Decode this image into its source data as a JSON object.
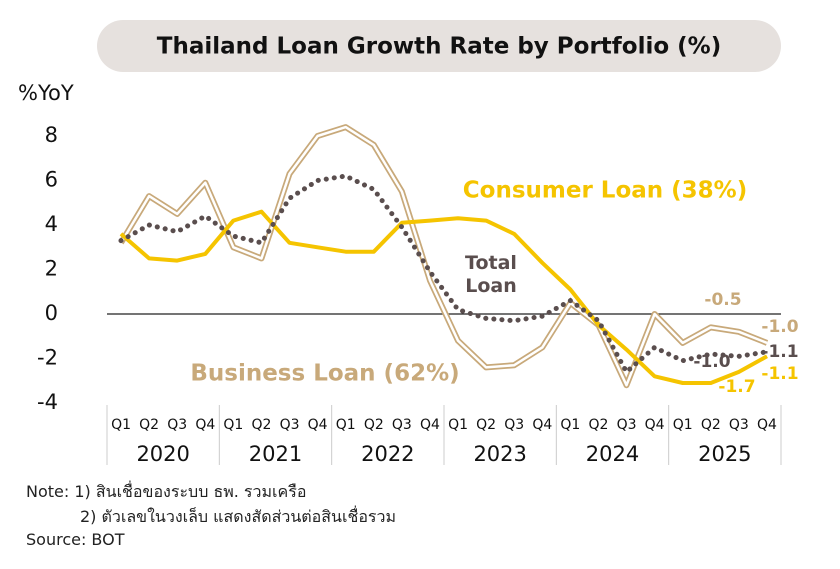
{
  "chart_data": {
    "type": "line",
    "title": "Thailand Loan Growth Rate by Portfolio (%)",
    "y_label": "%YoY",
    "categories": [
      "Q1",
      "Q2",
      "Q3",
      "Q4",
      "Q1",
      "Q2",
      "Q3",
      "Q4",
      "Q1",
      "Q2",
      "Q3",
      "Q4",
      "Q1",
      "Q2",
      "Q3",
      "Q4",
      "Q1",
      "Q2",
      "Q3",
      "Q4",
      "Q1",
      "Q2",
      "Q3",
      "Q4"
    ],
    "x_groups": [
      "2020",
      "2021",
      "2022",
      "2023",
      "2024",
      "2025"
    ],
    "ylim": [
      -4,
      8.8
    ],
    "yticks": [
      -4,
      -2,
      0,
      2,
      4,
      6,
      8
    ],
    "series": [
      {
        "name": "Business Loan (62%)",
        "color": "#c8a97a",
        "style": "double",
        "values": [
          3.2,
          5.3,
          4.5,
          5.9,
          3.0,
          2.5,
          6.3,
          8.0,
          8.4,
          7.6,
          5.5,
          1.5,
          -1.2,
          -2.4,
          -2.3,
          -1.5,
          0.5,
          -0.5,
          -3.2,
          0.0,
          -1.3,
          -0.6,
          -0.8,
          -1.3
        ]
      },
      {
        "name": "Consumer Loan (38%)",
        "color": "#f5c400",
        "style": "solid",
        "values": [
          3.6,
          2.5,
          2.4,
          2.7,
          4.2,
          4.6,
          3.2,
          3.0,
          2.8,
          2.8,
          4.1,
          4.2,
          4.3,
          4.2,
          3.6,
          2.3,
          1.1,
          -0.5,
          -1.6,
          -2.8,
          -3.1,
          -3.1,
          -2.6,
          -1.9
        ]
      },
      {
        "name": "Total Loan",
        "color": "#5a4e4e",
        "style": "dotted",
        "values": [
          3.3,
          4.0,
          3.7,
          4.4,
          3.5,
          3.2,
          5.2,
          6.0,
          6.2,
          5.6,
          3.9,
          1.9,
          0.2,
          -0.2,
          -0.3,
          -0.1,
          0.6,
          -0.3,
          -2.6,
          -1.5,
          -2.1,
          -1.8,
          -1.9,
          -1.7
        ]
      }
    ],
    "annotations": [
      {
        "text": "-0.5",
        "color": "#c8a97a"
      },
      {
        "text": "-1.0",
        "color": "#c8a97a"
      },
      {
        "text": "-1.1",
        "color": "#5a4e4e"
      },
      {
        "text": "-1.0",
        "color": "#5a4e4e"
      },
      {
        "text": "-1.7",
        "color": "#f5c400"
      },
      {
        "text": "-1.1",
        "color": "#f5c400"
      }
    ],
    "notes": [
      "Note: 1) สินเชื่อของระบบ ธพ. รวมเครือ",
      "2) ตัวเลขในวงเล็บ แสดงสัดส่วนต่อสินเชื่อรวม",
      "Source: BOT"
    ]
  }
}
